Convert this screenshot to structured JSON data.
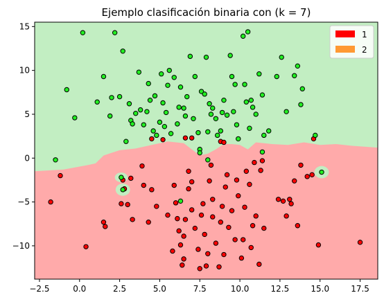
{
  "chart_data": {
    "type": "scatter",
    "title": "Ejemplo clasificación binaria con (k = 7)",
    "xlabel": "",
    "ylabel": "",
    "xlim": [
      -2.8,
      18.6
    ],
    "ylim": [
      -13.8,
      15.5
    ],
    "xticks": [
      -2.5,
      0.0,
      2.5,
      5.0,
      7.5,
      10.0,
      12.5,
      15.0,
      17.5
    ],
    "xtick_labels": [
      "−2.5",
      "0.0",
      "2.5",
      "5.0",
      "7.5",
      "10.0",
      "12.5",
      "15.0",
      "17.5"
    ],
    "yticks": [
      -10,
      -5,
      0,
      5,
      10,
      15
    ],
    "ytick_labels": [
      "−10",
      "−5",
      "0",
      "5",
      "10",
      "15"
    ],
    "legend": {
      "placement": "upper-right",
      "entries": [
        {
          "label": "1",
          "color": "#ff0000"
        },
        {
          "label": "2",
          "color": "#ff9933"
        }
      ]
    },
    "region_colors": {
      "class_1": "#ffaaaa",
      "class_2": "#c2eec2"
    },
    "decision_boundary": [
      [
        -2.8,
        -1.5
      ],
      [
        -1.0,
        -1.3
      ],
      [
        0.5,
        -0.8
      ],
      [
        1.0,
        -0.6
      ],
      [
        1.5,
        0.3
      ],
      [
        2.0,
        0.6
      ],
      [
        2.5,
        0.9
      ],
      [
        3.5,
        1.1
      ],
      [
        4.5,
        1.5
      ],
      [
        5.5,
        1.9
      ],
      [
        6.5,
        1.7
      ],
      [
        7.5,
        0.3
      ],
      [
        8.0,
        0.5
      ],
      [
        8.5,
        1.0
      ],
      [
        9.0,
        1.6
      ],
      [
        9.5,
        1.6
      ],
      [
        10.0,
        1.5
      ],
      [
        10.5,
        1.0
      ],
      [
        11.0,
        1.8
      ],
      [
        12.0,
        1.6
      ],
      [
        13.0,
        1.5
      ],
      [
        14.0,
        1.8
      ],
      [
        15.0,
        1.5
      ],
      [
        16.0,
        1.6
      ],
      [
        17.0,
        1.4
      ],
      [
        18.6,
        1.2
      ]
    ],
    "series": [
      {
        "color": "#ff0000",
        "points": [
          [
            -1.8,
            -5.0
          ],
          [
            -1.2,
            -2.0
          ],
          [
            0.4,
            -10.1
          ],
          [
            1.5,
            -7.3
          ],
          [
            1.6,
            -7.8
          ],
          [
            2.7,
            -2.5
          ],
          [
            2.8,
            -3.5
          ],
          [
            2.6,
            -5.2
          ],
          [
            3.0,
            -5.3
          ],
          [
            3.2,
            -2.3
          ],
          [
            3.3,
            -7.0
          ],
          [
            3.9,
            -0.9
          ],
          [
            4.0,
            -3.1
          ],
          [
            4.3,
            -7.3
          ],
          [
            4.5,
            -3.6
          ],
          [
            4.8,
            -5.5
          ],
          [
            5.5,
            -6.5
          ],
          [
            5.8,
            -10.6
          ],
          [
            5.9,
            -3.1
          ],
          [
            6.0,
            -5.1
          ],
          [
            6.1,
            -6.9
          ],
          [
            6.2,
            -8.3
          ],
          [
            6.3,
            -9.9
          ],
          [
            6.4,
            -12.2
          ],
          [
            6.5,
            -11.5
          ],
          [
            6.5,
            -8.9
          ],
          [
            6.6,
            -7.0
          ],
          [
            6.8,
            -3.5
          ],
          [
            6.8,
            -1.5
          ],
          [
            7.0,
            -2.7
          ],
          [
            7.0,
            -5.9
          ],
          [
            7.2,
            -8.0
          ],
          [
            7.4,
            -10.4
          ],
          [
            7.5,
            -12.6
          ],
          [
            7.6,
            -6.5
          ],
          [
            7.7,
            -5.2
          ],
          [
            7.8,
            -8.7
          ],
          [
            7.9,
            -12.3
          ],
          [
            8.0,
            -10.9
          ],
          [
            8.1,
            -2.6
          ],
          [
            8.2,
            -0.8
          ],
          [
            8.3,
            -4.7
          ],
          [
            8.3,
            -6.7
          ],
          [
            8.5,
            -9.7
          ],
          [
            8.7,
            -12.4
          ],
          [
            8.8,
            -7.3
          ],
          [
            8.9,
            -5.5
          ],
          [
            9.0,
            -11.0
          ],
          [
            9.1,
            -3.3
          ],
          [
            9.2,
            -1.9
          ],
          [
            9.3,
            -7.9
          ],
          [
            9.5,
            -6.0
          ],
          [
            9.7,
            -9.3
          ],
          [
            9.8,
            -2.5
          ],
          [
            9.9,
            -4.3
          ],
          [
            10.1,
            -11.4
          ],
          [
            10.2,
            -9.3
          ],
          [
            10.3,
            -5.6
          ],
          [
            10.4,
            -1.5
          ],
          [
            10.6,
            -3.0
          ],
          [
            10.7,
            -10.2
          ],
          [
            10.8,
            -7.7
          ],
          [
            10.9,
            -0.5
          ],
          [
            11.0,
            -6.6
          ],
          [
            11.2,
            -12.1
          ],
          [
            11.3,
            -1.4
          ],
          [
            11.4,
            -0.3
          ],
          [
            11.5,
            -8.0
          ],
          [
            12.4,
            -4.7
          ],
          [
            12.7,
            -4.9
          ],
          [
            12.9,
            -6.6
          ],
          [
            13.1,
            -4.7
          ],
          [
            13.2,
            -5.2
          ],
          [
            13.4,
            -2.6
          ],
          [
            13.6,
            -7.7
          ],
          [
            13.8,
            -0.8
          ],
          [
            14.2,
            -2.1
          ],
          [
            14.5,
            -1.9
          ],
          [
            14.6,
            2.2
          ],
          [
            14.9,
            -9.9
          ],
          [
            17.5,
            -9.6
          ],
          [
            6.6,
            2.3
          ],
          [
            7.0,
            2.3
          ],
          [
            8.8,
            1.9
          ],
          [
            9.0,
            1.8
          ],
          [
            5.2,
            2.1
          ],
          [
            4.5,
            2.2
          ]
        ]
      },
      {
        "color": "#22ee22",
        "points": [
          [
            -1.5,
            -0.2
          ],
          [
            -0.8,
            7.8
          ],
          [
            -0.3,
            4.6
          ],
          [
            0.2,
            14.3
          ],
          [
            1.1,
            6.4
          ],
          [
            1.5,
            9.3
          ],
          [
            1.9,
            4.8
          ],
          [
            2.0,
            6.9
          ],
          [
            2.2,
            14.3
          ],
          [
            2.5,
            7.0
          ],
          [
            2.7,
            12.2
          ],
          [
            2.9,
            1.9
          ],
          [
            3.1,
            6.2
          ],
          [
            3.2,
            4.3
          ],
          [
            3.3,
            3.9
          ],
          [
            3.5,
            5.1
          ],
          [
            3.7,
            9.8
          ],
          [
            3.8,
            5.5
          ],
          [
            4.0,
            3.8
          ],
          [
            4.2,
            5.3
          ],
          [
            4.3,
            8.5
          ],
          [
            4.4,
            6.6
          ],
          [
            4.6,
            3.1
          ],
          [
            4.7,
            7.1
          ],
          [
            4.8,
            2.6
          ],
          [
            5.0,
            4.1
          ],
          [
            5.1,
            9.6
          ],
          [
            5.2,
            6.3
          ],
          [
            5.3,
            3.6
          ],
          [
            5.4,
            5.2
          ],
          [
            5.5,
            8.3
          ],
          [
            5.6,
            10.0
          ],
          [
            5.7,
            2.8
          ],
          [
            5.9,
            9.2
          ],
          [
            6.1,
            3.9
          ],
          [
            6.2,
            5.8
          ],
          [
            6.3,
            8.1
          ],
          [
            6.5,
            5.7
          ],
          [
            6.6,
            4.8
          ],
          [
            6.7,
            7.0
          ],
          [
            6.9,
            11.6
          ],
          [
            7.1,
            4.5
          ],
          [
            7.2,
            9.3
          ],
          [
            7.4,
            2.9
          ],
          [
            7.5,
            1.0
          ],
          [
            7.6,
            7.6
          ],
          [
            7.8,
            7.3
          ],
          [
            7.9,
            11.5
          ],
          [
            8.0,
            3.0
          ],
          [
            8.1,
            6.2
          ],
          [
            8.2,
            5.0
          ],
          [
            8.3,
            5.7
          ],
          [
            8.5,
            4.5
          ],
          [
            8.6,
            2.6
          ],
          [
            8.8,
            3.1
          ],
          [
            8.9,
            5.2
          ],
          [
            9.0,
            6.6
          ],
          [
            9.2,
            4.9
          ],
          [
            9.4,
            11.7
          ],
          [
            9.5,
            9.3
          ],
          [
            9.6,
            5.3
          ],
          [
            9.7,
            8.4
          ],
          [
            9.8,
            3.8
          ],
          [
            9.9,
            2.2
          ],
          [
            10.2,
            13.9
          ],
          [
            10.3,
            8.4
          ],
          [
            10.4,
            6.4
          ],
          [
            10.5,
            14.4
          ],
          [
            10.6,
            3.4
          ],
          [
            10.7,
            6.6
          ],
          [
            10.8,
            5.8
          ],
          [
            11.0,
            5.0
          ],
          [
            11.2,
            9.6
          ],
          [
            11.4,
            7.2
          ],
          [
            11.5,
            2.6
          ],
          [
            11.8,
            3.1
          ],
          [
            12.3,
            9.3
          ],
          [
            12.6,
            11.5
          ],
          [
            12.9,
            5.3
          ],
          [
            13.4,
            9.4
          ],
          [
            13.6,
            10.5
          ],
          [
            13.8,
            6.1
          ],
          [
            13.9,
            7.9
          ],
          [
            14.7,
            2.6
          ],
          [
            15.1,
            -1.6
          ],
          [
            2.7,
            -3.6
          ],
          [
            6.3,
            -4.9
          ],
          [
            7.5,
            0.6
          ],
          [
            2.6,
            -2.2
          ],
          [
            8.0,
            -0.2
          ],
          [
            11.4,
            0.7
          ]
        ]
      }
    ]
  }
}
